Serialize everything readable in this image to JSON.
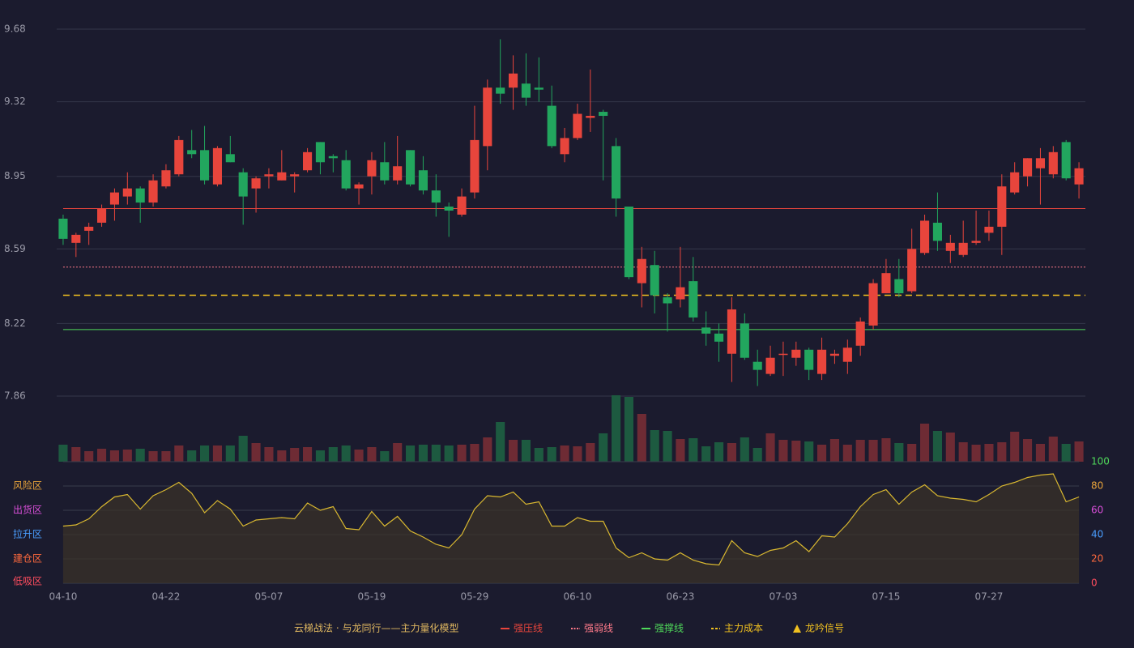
{
  "chart_data": [
    {
      "type": "candlestick",
      "categories": [
        "04-10",
        null,
        null,
        null,
        null,
        null,
        null,
        null,
        "04-22",
        null,
        null,
        null,
        null,
        null,
        null,
        null,
        "05-07",
        null,
        null,
        null,
        null,
        null,
        null,
        null,
        "05-19",
        null,
        null,
        null,
        null,
        null,
        null,
        null,
        "05-29",
        null,
        null,
        null,
        null,
        null,
        null,
        null,
        "06-10",
        null,
        null,
        null,
        null,
        null,
        null,
        null,
        "06-23",
        null,
        null,
        null,
        null,
        null,
        null,
        null,
        "07-03",
        null,
        null,
        null,
        null,
        null,
        null,
        null,
        "07-15",
        null,
        null,
        null,
        null,
        null,
        null,
        null,
        "07-27",
        null,
        null,
        null,
        null,
        null,
        null,
        null
      ],
      "open": [
        8.74,
        8.62,
        8.68,
        8.72,
        8.81,
        8.85,
        8.89,
        8.82,
        8.9,
        8.96,
        9.08,
        9.08,
        8.91,
        9.06,
        8.97,
        8.89,
        8.95,
        8.93,
        8.95,
        8.98,
        9.12,
        9.05,
        9.03,
        8.89,
        8.95,
        9.02,
        8.93,
        9.08,
        8.98,
        8.88,
        8.8,
        8.76,
        8.87,
        9.1,
        9.39,
        9.39,
        9.41,
        9.39,
        9.3,
        9.06,
        9.14,
        9.24,
        9.27,
        9.1,
        8.8,
        8.42,
        8.51,
        8.35,
        8.34,
        8.43,
        8.2,
        8.17,
        8.07,
        8.22,
        8.03,
        7.97,
        8.07,
        8.05,
        8.09,
        7.97,
        8.06,
        8.03,
        8.11,
        8.21,
        8.37,
        8.44,
        8.38,
        8.57,
        8.72,
        8.58,
        8.56,
        8.62,
        8.67,
        8.7,
        8.87,
        8.95,
        8.99,
        8.96,
        9.12,
        8.91
      ],
      "high": [
        8.76,
        8.67,
        8.72,
        8.81,
        8.89,
        8.97,
        8.9,
        8.96,
        9.01,
        9.15,
        9.18,
        9.2,
        9.1,
        9.15,
        8.99,
        8.95,
        8.99,
        9.08,
        8.97,
        9.09,
        9.12,
        9.06,
        9.08,
        8.92,
        9.07,
        9.12,
        9.15,
        9.08,
        9.05,
        8.96,
        8.82,
        8.89,
        9.3,
        9.43,
        9.63,
        9.55,
        9.56,
        9.54,
        9.4,
        9.19,
        9.31,
        9.48,
        9.28,
        9.14,
        8.8,
        8.6,
        8.58,
        8.37,
        8.6,
        8.55,
        8.28,
        8.22,
        8.35,
        8.27,
        8.09,
        8.11,
        8.13,
        8.13,
        8.1,
        8.15,
        8.09,
        8.14,
        8.25,
        8.44,
        8.54,
        8.54,
        8.69,
        8.76,
        8.87,
        8.66,
        8.73,
        8.78,
        8.78,
        8.96,
        9.02,
        9.04,
        9.09,
        9.1,
        9.13,
        9.02
      ],
      "low": [
        8.61,
        8.55,
        8.61,
        8.7,
        8.73,
        8.81,
        8.72,
        8.8,
        8.89,
        8.95,
        9.04,
        8.91,
        8.9,
        9.02,
        8.71,
        8.77,
        8.89,
        8.93,
        8.87,
        8.97,
        8.96,
        8.97,
        8.88,
        8.81,
        8.86,
        8.91,
        8.91,
        8.9,
        8.86,
        8.75,
        8.65,
        8.75,
        8.84,
        8.98,
        9.31,
        9.28,
        9.3,
        9.32,
        9.09,
        9.02,
        9.13,
        9.17,
        8.93,
        8.75,
        8.44,
        8.3,
        8.27,
        8.18,
        8.3,
        8.23,
        8.11,
        8.03,
        7.93,
        8.04,
        7.91,
        7.96,
        7.96,
        8.01,
        7.94,
        7.94,
        8.02,
        7.97,
        8.06,
        8.19,
        8.37,
        8.35,
        8.37,
        8.56,
        8.58,
        8.52,
        8.55,
        8.61,
        8.63,
        8.56,
        8.86,
        8.9,
        8.81,
        8.94,
        8.93,
        8.84
      ],
      "close": [
        8.64,
        8.66,
        8.7,
        8.79,
        8.87,
        8.89,
        8.82,
        8.93,
        8.98,
        9.13,
        9.06,
        8.93,
        9.09,
        9.02,
        8.85,
        8.94,
        8.96,
        8.97,
        8.96,
        9.07,
        9.02,
        9.04,
        8.89,
        8.91,
        9.03,
        8.93,
        9.0,
        8.91,
        8.88,
        8.82,
        8.78,
        8.85,
        9.13,
        9.39,
        9.36,
        9.46,
        9.34,
        9.38,
        9.1,
        9.14,
        9.26,
        9.25,
        9.25,
        8.84,
        8.45,
        8.54,
        8.36,
        8.32,
        8.4,
        8.25,
        8.17,
        8.13,
        8.29,
        8.05,
        7.99,
        8.05,
        8.07,
        8.09,
        7.99,
        8.09,
        8.07,
        8.1,
        8.23,
        8.42,
        8.47,
        8.37,
        8.59,
        8.73,
        8.63,
        8.62,
        8.62,
        8.63,
        8.7,
        8.9,
        8.97,
        9.04,
        9.04,
        9.07,
        8.94,
        8.99
      ],
      "volume": [
        21,
        18,
        13,
        16,
        14,
        15,
        16,
        13,
        13,
        20,
        14,
        20,
        20,
        20,
        32,
        23,
        18,
        14,
        17,
        18,
        14,
        18,
        20,
        15,
        18,
        13,
        23,
        20,
        21,
        21,
        20,
        21,
        22,
        30,
        49,
        27,
        27,
        17,
        18,
        20,
        19,
        23,
        35,
        82,
        80,
        59,
        39,
        38,
        28,
        29,
        19,
        24,
        23,
        30,
        17,
        35,
        27,
        26,
        25,
        21,
        28,
        21,
        27,
        27,
        29,
        23,
        22,
        47,
        38,
        36,
        24,
        21,
        22,
        24,
        37,
        28,
        22,
        31,
        22,
        25
      ],
      "up_color": "#e8453c",
      "down_color": "#22a65e",
      "volume_up_color": "#6e2b34",
      "volume_down_color": "#1d5a40",
      "ylim": [
        7.86,
        9.68
      ],
      "yticks": [
        7.86,
        8.22,
        8.59,
        8.95,
        9.32,
        9.68
      ],
      "grid": true,
      "hlines": [
        {
          "name": "强压线",
          "value": 8.79,
          "color": "#e8453c",
          "style": "solid"
        },
        {
          "name": "强弱线",
          "value": 8.5,
          "color": "#ff7a8a",
          "style": "dotted"
        },
        {
          "name": "强撑线",
          "value": 8.19,
          "color": "#4fd95a",
          "style": "solid"
        },
        {
          "name": "主力成本",
          "value": 8.36,
          "color": "#f0c020",
          "style": "dashed"
        }
      ],
      "signal": {
        "name": "龙吟信号",
        "color": "#f0c020"
      },
      "legend_title": "云梯战法 · 与龙同行——主力量化模型"
    },
    {
      "type": "line",
      "values": [
        47,
        48,
        53,
        63,
        71,
        73,
        61,
        72,
        77,
        83,
        74,
        58,
        68,
        61,
        47,
        52,
        53,
        54,
        53,
        66,
        60,
        63,
        45,
        44,
        59,
        47,
        55,
        43,
        38,
        32,
        29,
        40,
        61,
        72,
        71,
        75,
        65,
        67,
        47,
        47,
        54,
        51,
        51,
        29,
        21,
        25,
        20,
        19,
        25,
        19,
        16,
        15,
        35,
        25,
        22,
        27,
        29,
        35,
        26,
        39,
        38,
        49,
        63,
        73,
        77,
        65,
        75,
        81,
        72,
        70,
        69,
        67,
        73,
        80,
        83,
        87,
        89,
        90,
        67,
        71
      ],
      "color": "#d9b830",
      "ylim": [
        0,
        100
      ],
      "yticks": [
        0,
        20,
        40,
        60,
        80,
        100
      ],
      "ytick_colors": [
        "#ff4d5e",
        "#ff6a3d",
        "#4a9eff",
        "#d94fd9",
        "#e8a33a",
        "#4fd95a"
      ],
      "zones": [
        {
          "value": 80,
          "label": "风险区",
          "color": "#e8a33a"
        },
        {
          "value": 60,
          "label": "出货区",
          "color": "#d94fd9"
        },
        {
          "value": 40,
          "label": "拉升区",
          "color": "#4a9eff"
        },
        {
          "value": 20,
          "label": "建仓区",
          "color": "#ff6a3d"
        },
        {
          "value": 0,
          "label": "低吸区",
          "color": "#ff4d5e"
        }
      ]
    }
  ]
}
